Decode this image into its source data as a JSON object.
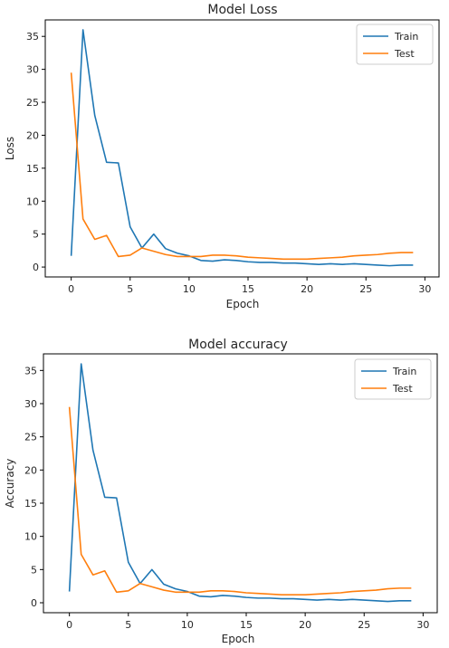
{
  "chart_data": [
    {
      "type": "line",
      "title": "Model Loss",
      "xlabel": "Epoch",
      "ylabel": "Loss",
      "xlim": [
        -2.2,
        31.2
      ],
      "ylim": [
        -1.5,
        37.5
      ],
      "xticks": [
        0,
        5,
        10,
        15,
        20,
        25,
        30
      ],
      "yticks": [
        0,
        5,
        10,
        15,
        20,
        25,
        30,
        35
      ],
      "grid": false,
      "legend_position": "top-right",
      "x": [
        0,
        1,
        2,
        3,
        4,
        5,
        6,
        7,
        8,
        9,
        10,
        11,
        12,
        13,
        14,
        15,
        16,
        17,
        18,
        19,
        20,
        21,
        22,
        23,
        24,
        25,
        26,
        27,
        28,
        29
      ],
      "series": [
        {
          "name": "Train",
          "color": "#1f77b4",
          "values": [
            1.7,
            36.0,
            23.0,
            15.9,
            15.8,
            6.1,
            2.9,
            5.0,
            2.8,
            2.1,
            1.7,
            1.0,
            0.9,
            1.1,
            1.0,
            0.8,
            0.7,
            0.7,
            0.6,
            0.6,
            0.5,
            0.4,
            0.5,
            0.4,
            0.5,
            0.4,
            0.3,
            0.2,
            0.3,
            0.3
          ]
        },
        {
          "name": "Test",
          "color": "#ff7f0e",
          "values": [
            29.5,
            7.3,
            4.2,
            4.8,
            1.6,
            1.8,
            2.9,
            2.4,
            1.9,
            1.6,
            1.6,
            1.6,
            1.8,
            1.8,
            1.7,
            1.5,
            1.4,
            1.3,
            1.2,
            1.2,
            1.2,
            1.3,
            1.4,
            1.5,
            1.7,
            1.8,
            1.9,
            2.1,
            2.2,
            2.2
          ]
        }
      ]
    },
    {
      "type": "line",
      "title": "Model accuracy",
      "xlabel": "Epoch",
      "ylabel": "Accuracy",
      "xlim": [
        -2.2,
        31.2
      ],
      "ylim": [
        -1.5,
        37.5
      ],
      "xticks": [
        0,
        5,
        10,
        15,
        20,
        25,
        30
      ],
      "yticks": [
        0,
        5,
        10,
        15,
        20,
        25,
        30,
        35
      ],
      "grid": false,
      "legend_position": "top-right",
      "x": [
        0,
        1,
        2,
        3,
        4,
        5,
        6,
        7,
        8,
        9,
        10,
        11,
        12,
        13,
        14,
        15,
        16,
        17,
        18,
        19,
        20,
        21,
        22,
        23,
        24,
        25,
        26,
        27,
        28,
        29
      ],
      "series": [
        {
          "name": "Train",
          "color": "#1f77b4",
          "values": [
            1.7,
            36.0,
            23.0,
            15.9,
            15.8,
            6.1,
            2.9,
            5.0,
            2.8,
            2.1,
            1.7,
            1.0,
            0.9,
            1.1,
            1.0,
            0.8,
            0.7,
            0.7,
            0.6,
            0.6,
            0.5,
            0.4,
            0.5,
            0.4,
            0.5,
            0.4,
            0.3,
            0.2,
            0.3,
            0.3
          ]
        },
        {
          "name": "Test",
          "color": "#ff7f0e",
          "values": [
            29.5,
            7.3,
            4.2,
            4.8,
            1.6,
            1.8,
            2.9,
            2.4,
            1.9,
            1.6,
            1.6,
            1.6,
            1.8,
            1.8,
            1.7,
            1.5,
            1.4,
            1.3,
            1.2,
            1.2,
            1.2,
            1.3,
            1.4,
            1.5,
            1.7,
            1.8,
            1.9,
            2.1,
            2.2,
            2.2
          ]
        }
      ]
    }
  ]
}
